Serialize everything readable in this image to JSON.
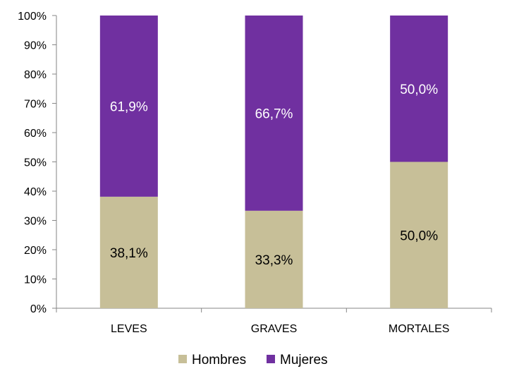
{
  "chart_data": {
    "type": "bar",
    "stacked": true,
    "categories": [
      "LEVES",
      "GRAVES",
      "MORTALES"
    ],
    "series": [
      {
        "name": "Hombres",
        "values": [
          38.1,
          33.3,
          50.0
        ],
        "labels": [
          "38,1%",
          "33,3%",
          "50,0%"
        ],
        "color": "#c7bf98",
        "label_color": "#000000"
      },
      {
        "name": "Mujeres",
        "values": [
          61.9,
          66.7,
          50.0
        ],
        "labels": [
          "61,9%",
          "66,7%",
          "50,0%"
        ],
        "color": "#7030a0",
        "label_color": "#ffffff"
      }
    ],
    "y_ticks": [
      "0%",
      "10%",
      "20%",
      "30%",
      "40%",
      "50%",
      "60%",
      "70%",
      "80%",
      "90%",
      "100%"
    ],
    "ylim": [
      0,
      100
    ],
    "grid": false,
    "legend_position": "bottom"
  }
}
